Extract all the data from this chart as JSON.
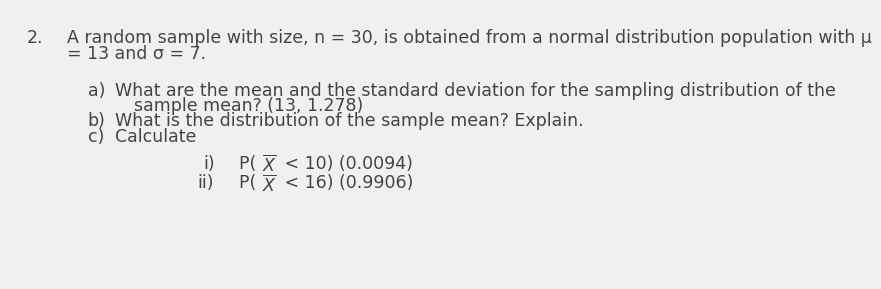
{
  "bg_color": "#f0f0f0",
  "text_color": "#444444",
  "font_size": 12.5,
  "q_num": "2.",
  "line1": "A random sample with size, n = 30, is obtained from a normal distribution population with μ",
  "line2": "= 13 and σ = 7.",
  "part_a_label": "a)",
  "part_a_text1": "What are the mean and the standard deviation for the sampling distribution of the",
  "part_a_text2": "sample mean? (13, 1.278)",
  "part_b_label": "b)",
  "part_b_text": "What is the distribution of the sample mean? Explain.",
  "part_c_label": "c)",
  "part_c_text": "Calculate",
  "sub_i_label": "i)",
  "sub_i_p": "P( ",
  "sub_i_x": "X",
  "sub_i_rest": " < 10) (0.0094)",
  "sub_ii_label": "ii)",
  "sub_ii_p": "P( ",
  "sub_ii_x": "X",
  "sub_ii_rest": " < 16) (0.9906)"
}
